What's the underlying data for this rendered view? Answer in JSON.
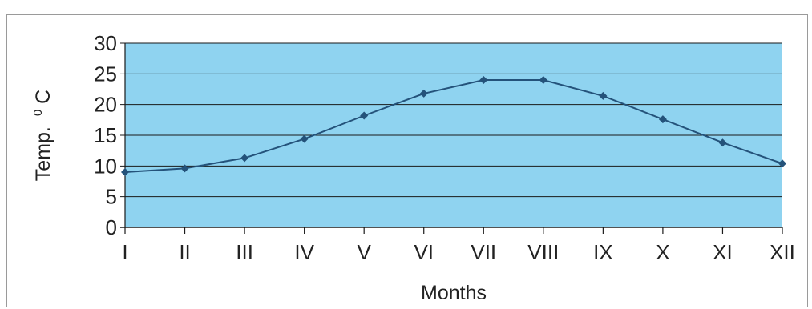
{
  "chart_data": {
    "type": "line",
    "xlabel": "Months",
    "ylabel": "Temp.",
    "ylabel_unit": "0",
    "ylabel_unit_suffix": "C",
    "ylim": [
      0,
      30
    ],
    "yticks": [
      0,
      5,
      10,
      15,
      20,
      25,
      30
    ],
    "categories": [
      "I",
      "II",
      "III",
      "IV",
      "V",
      "VI",
      "VII",
      "VIII",
      "IX",
      "X",
      "XI",
      "XII"
    ],
    "series": [
      {
        "values": [
          9.0,
          9.6,
          11.3,
          14.4,
          18.2,
          21.8,
          24.0,
          24.0,
          21.4,
          17.6,
          13.8,
          10.4
        ]
      }
    ],
    "grid": true,
    "legend": "none",
    "colors": {
      "plot_background": "#8fd3f0",
      "line": "#24527a",
      "grid": "#1a1a1a"
    }
  }
}
